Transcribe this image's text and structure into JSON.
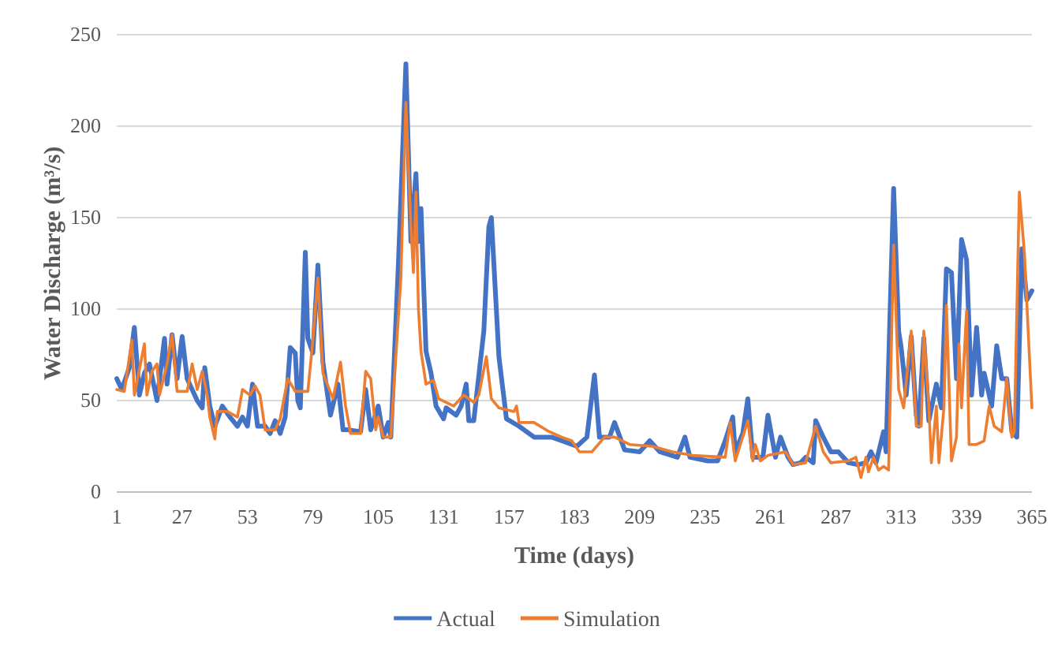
{
  "chart_data": {
    "type": "line",
    "xlabel": "Time (days)",
    "ylabel": "Water Discharge (m³/s)",
    "xlim": [
      1,
      365
    ],
    "xticks": [
      1,
      27,
      53,
      79,
      105,
      131,
      157,
      183,
      209,
      235,
      261,
      287,
      313,
      339,
      365
    ],
    "ylim": [
      0,
      250
    ],
    "yticks": [
      0,
      50,
      100,
      150,
      200,
      250
    ],
    "grid": "y",
    "legend": "bottom",
    "marker": "none",
    "line_style": "solid",
    "series": [
      {
        "name": "Actual",
        "color": "#4472c4",
        "x": [
          1,
          3,
          6,
          8,
          10,
          12,
          14,
          17,
          20,
          21,
          23,
          25,
          27,
          29,
          33,
          35,
          36,
          38,
          40,
          43,
          46,
          49,
          51,
          53,
          55,
          57,
          60,
          62,
          64,
          66,
          68,
          70,
          72,
          73,
          74,
          76,
          77,
          79,
          81,
          83,
          86,
          89,
          91,
          93,
          98,
          100,
          102,
          105,
          107,
          109,
          110,
          113,
          116,
          118,
          120,
          121,
          122,
          124,
          126,
          128,
          131,
          132,
          136,
          138,
          140,
          141,
          143,
          147,
          149,
          150,
          153,
          156,
          161,
          167,
          174,
          178,
          184,
          188,
          191,
          193,
          197,
          199,
          203,
          209,
          213,
          217,
          224,
          227,
          229,
          236,
          240,
          243,
          246,
          247,
          250,
          252,
          254,
          258,
          260,
          263,
          265,
          268,
          270,
          273,
          275,
          278,
          279,
          282,
          285,
          288,
          292,
          296,
          299,
          301,
          303,
          306,
          307,
          310,
          312,
          313,
          315,
          317,
          319,
          320,
          322,
          324,
          327,
          329,
          331,
          333,
          335,
          337,
          339,
          341,
          343,
          345,
          346,
          349,
          351,
          353,
          355,
          357,
          359,
          361,
          363,
          365
        ],
        "values": [
          62,
          56,
          68,
          90,
          53,
          65,
          70,
          50,
          84,
          59,
          86,
          62,
          85,
          62,
          50,
          46,
          68,
          47,
          36,
          47,
          41,
          36,
          41,
          36,
          59,
          36,
          36,
          32,
          39,
          32,
          41,
          79,
          76,
          50,
          46,
          131,
          84,
          76,
          124,
          71,
          42,
          59,
          34,
          34,
          33,
          56,
          34,
          47,
          30,
          38,
          30,
          124,
          234,
          137,
          174,
          137,
          155,
          77,
          65,
          47,
          40,
          46,
          42,
          47,
          59,
          39,
          39,
          88,
          145,
          150,
          74,
          40,
          36,
          30,
          30,
          28,
          25,
          30,
          64,
          30,
          30,
          38,
          23,
          22,
          28,
          22,
          19,
          30,
          19,
          17,
          17,
          28,
          41,
          22,
          32,
          51,
          19,
          19,
          42,
          19,
          30,
          19,
          15,
          16,
          19,
          16,
          39,
          30,
          22,
          22,
          16,
          15,
          16,
          22,
          16,
          33,
          22,
          166,
          88,
          79,
          53,
          85,
          42,
          36,
          84,
          39,
          59,
          46,
          122,
          120,
          62,
          138,
          127,
          53,
          90,
          53,
          65,
          47,
          80,
          62,
          62,
          33,
          30,
          133,
          105,
          110
        ]
      },
      {
        "name": "Simulation",
        "color": "#ed7d31",
        "x": [
          1,
          4,
          7,
          8,
          12,
          13,
          15,
          17,
          18,
          21,
          23,
          25,
          29,
          31,
          33,
          35,
          37,
          38,
          40,
          41,
          45,
          49,
          51,
          54,
          56,
          58,
          60,
          64,
          66,
          69,
          72,
          77,
          79,
          81,
          83,
          87,
          90,
          92,
          94,
          98,
          100,
          102,
          104,
          105,
          107,
          110,
          114,
          116,
          118,
          119,
          120,
          121,
          122,
          124,
          127,
          129,
          135,
          139,
          143,
          145,
          148,
          150,
          153,
          159,
          160,
          161,
          167,
          173,
          178,
          182,
          185,
          190,
          195,
          199,
          205,
          214,
          222,
          230,
          243,
          245,
          247,
          252,
          254,
          255,
          257,
          260,
          267,
          270,
          275,
          279,
          282,
          285,
          292,
          295,
          297,
          299,
          300,
          302,
          304,
          306,
          308,
          310,
          312,
          314,
          317,
          319,
          321,
          322,
          324,
          325,
          327,
          328,
          330,
          331,
          333,
          335,
          336,
          337,
          339,
          340,
          343,
          346,
          348,
          350,
          353,
          355,
          357,
          358,
          360,
          362,
          365
        ],
        "values": [
          56,
          55,
          83,
          53,
          81,
          53,
          66,
          70,
          53,
          70,
          86,
          55,
          55,
          70,
          56,
          66,
          53,
          41,
          29,
          44,
          44,
          41,
          56,
          53,
          58,
          53,
          34,
          34,
          40,
          62,
          55,
          55,
          83,
          117,
          65,
          51,
          71,
          47,
          32,
          32,
          66,
          62,
          34,
          41,
          30,
          30,
          117,
          213,
          145,
          120,
          164,
          100,
          77,
          59,
          61,
          51,
          47,
          53,
          49,
          53,
          74,
          51,
          46,
          44,
          47,
          38,
          38,
          33,
          30,
          28,
          22,
          22,
          30,
          30,
          26,
          25,
          22,
          20,
          19,
          38,
          17,
          39,
          17,
          26,
          17,
          20,
          22,
          15,
          16,
          36,
          22,
          16,
          17,
          19,
          8,
          19,
          11,
          19,
          12,
          14,
          12,
          135,
          56,
          46,
          88,
          36,
          36,
          88,
          47,
          16,
          47,
          16,
          46,
          102,
          17,
          30,
          81,
          46,
          99,
          26,
          26,
          28,
          47,
          36,
          33,
          62,
          30,
          33,
          164,
          131,
          46
        ]
      }
    ]
  }
}
